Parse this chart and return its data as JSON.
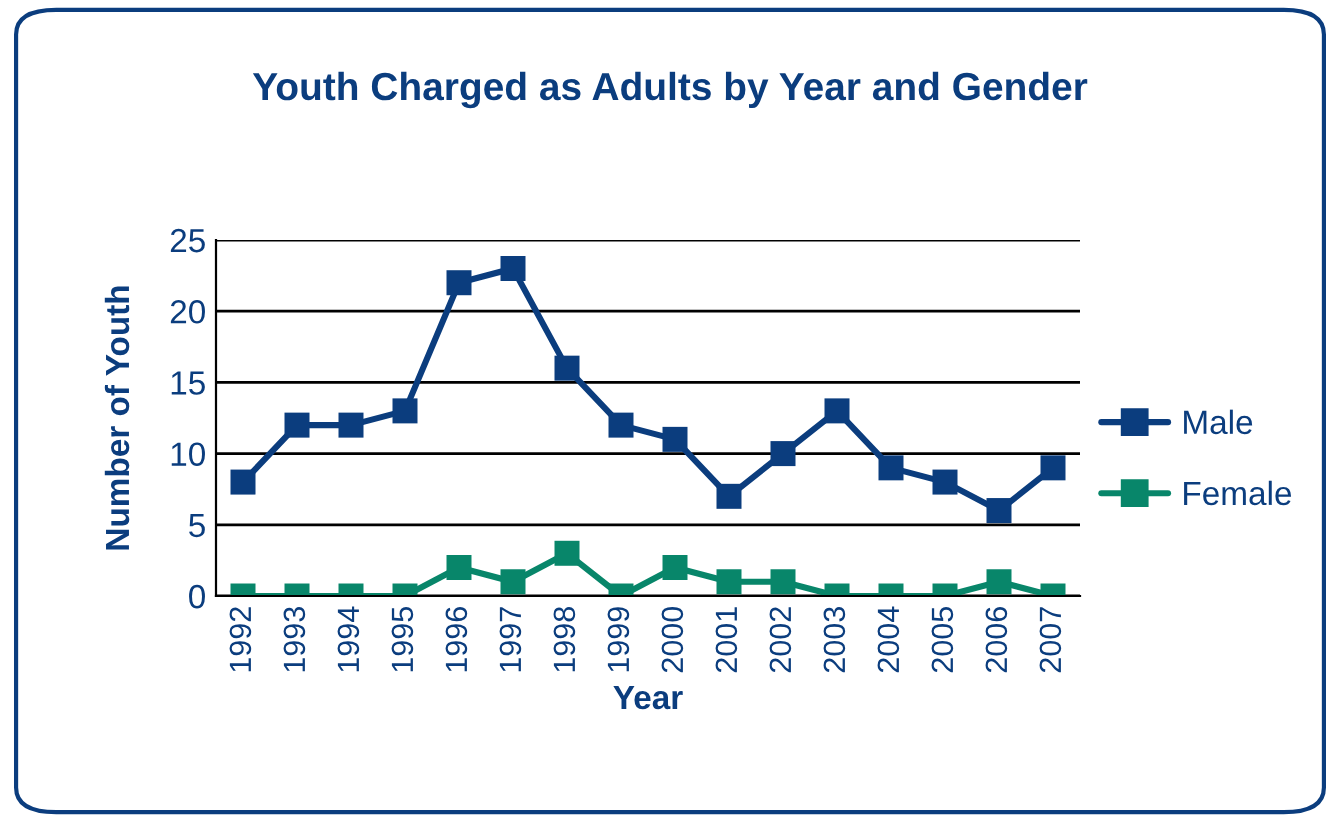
{
  "chart_data": {
    "type": "line",
    "title": "Youth Charged as Adults by Year and Gender",
    "xlabel": "Year",
    "ylabel": "Number of Youth",
    "categories": [
      "1992",
      "1993",
      "1994",
      "1995",
      "1996",
      "1997",
      "1998",
      "1999",
      "2000",
      "2001",
      "2002",
      "2003",
      "2004",
      "2005",
      "2006",
      "2007"
    ],
    "series": [
      {
        "name": "Male",
        "color": "#0b3d7e",
        "values": [
          8,
          12,
          12,
          13,
          22,
          23,
          16,
          12,
          11,
          7,
          10,
          13,
          9,
          8,
          6,
          9
        ]
      },
      {
        "name": "Female",
        "color": "#08866a",
        "values": [
          0,
          0,
          0,
          0,
          2,
          1,
          3,
          0,
          2,
          1,
          1,
          0,
          0,
          0,
          1,
          0
        ]
      }
    ],
    "ylim": [
      0,
      25
    ],
    "yticks": [
      0,
      5,
      10,
      15,
      20,
      25
    ],
    "grid": "y",
    "legend": "right",
    "marker": "square",
    "line_style": "solid"
  }
}
